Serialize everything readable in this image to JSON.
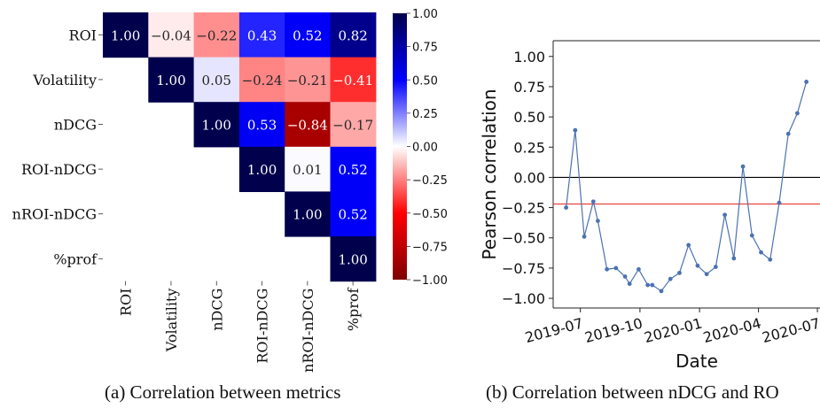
{
  "captions": {
    "left": "(a) Correlation between metrics",
    "right": "(b) Correlation between nDCG and RO"
  },
  "chart_data": [
    {
      "type": "heatmap",
      "title": "",
      "row_labels": [
        "ROI",
        "Volatility",
        "nDCG",
        "ROI-nDCG",
        "nROI-nDCG",
        "%prof"
      ],
      "col_labels": [
        "ROI",
        "Volatility",
        "nDCG",
        "ROI-nDCG",
        "nROI-nDCG",
        "%prof"
      ],
      "values": [
        [
          1.0,
          -0.04,
          -0.22,
          0.43,
          0.52,
          0.82
        ],
        [
          null,
          1.0,
          0.05,
          -0.24,
          -0.21,
          -0.41
        ],
        [
          null,
          null,
          1.0,
          0.53,
          -0.84,
          -0.17
        ],
        [
          null,
          null,
          null,
          1.0,
          0.01,
          0.52
        ],
        [
          null,
          null,
          null,
          null,
          1.0,
          0.52
        ],
        [
          null,
          null,
          null,
          null,
          null,
          1.0
        ]
      ],
      "colormap": "seismic",
      "vmin": -1.0,
      "vmax": 1.0,
      "colorbar_ticks": [
        "1.00",
        "0.75",
        "0.50",
        "0.25",
        "0.00",
        "−0.25",
        "−0.50",
        "−0.75",
        "−1.00"
      ],
      "colors": {
        "positive_max": "#00004c",
        "positive_mid": "#0000ff",
        "neutral": "#ffffff",
        "negative_mid": "#ff0000",
        "negative_max": "#7f0000"
      }
    },
    {
      "type": "line",
      "title": "",
      "xlabel": "Date",
      "ylabel": "Pearson correlation",
      "ylim": [
        -1.08,
        1.13
      ],
      "yticks": [
        "1.00",
        "0.75",
        "0.50",
        "0.25",
        "0.00",
        "−0.25",
        "−0.50",
        "−0.75",
        "−1.00"
      ],
      "xticks": [
        "2019-07",
        "2019-10",
        "2020-01",
        "2020-04",
        "2020-07"
      ],
      "reference_lines": [
        {
          "y": 0.0,
          "color": "#000000"
        },
        {
          "y": -0.22,
          "color": "#e8423e"
        }
      ],
      "series": [
        {
          "color": "#4c72b0",
          "x": [
            "2019-06-09",
            "2019-06-16",
            "2019-06-23",
            "2019-06-30",
            "2019-07-07",
            "2019-07-14",
            "2019-07-21",
            "2019-07-28",
            "2019-08-04",
            "2019-08-11",
            "2019-08-18",
            "2019-08-25",
            "2019-09-01",
            "2019-09-08",
            "2019-09-15",
            "2019-09-22",
            "2019-09-29",
            "2019-10-06",
            "2019-10-13",
            "2019-10-20",
            "2019-10-27",
            "2019-11-03",
            "2019-11-10",
            "2019-11-17",
            "2019-11-24",
            "2019-12-01",
            "2019-12-08",
            "2019-12-15",
            "2019-12-22",
            "2019-12-29",
            "2020-01-05",
            "2020-01-12",
            "2020-01-19",
            "2020-01-26",
            "2020-02-02",
            "2020-02-09",
            "2020-02-16",
            "2020-02-23",
            "2020-03-01",
            "2020-03-08",
            "2020-03-15",
            "2020-03-22",
            "2020-03-29",
            "2020-04-05",
            "2020-04-12",
            "2020-04-19",
            "2020-04-26",
            "2020-05-03",
            "2020-05-10",
            "2020-05-17",
            "2020-05-24",
            "2020-05-31",
            "2020-06-07",
            "2020-06-14",
            "2020-06-21",
            "2020-06-28"
          ],
          "y": [
            -0.25,
            null,
            0.39,
            null,
            -0.49,
            null,
            -0.2,
            -0.36,
            null,
            -0.76,
            null,
            -0.75,
            null,
            -0.82,
            -0.88,
            null,
            -0.76,
            null,
            -0.89,
            -0.89,
            null,
            -0.94,
            null,
            -0.84,
            null,
            -0.79,
            null,
            -0.56,
            null,
            -0.73,
            null,
            -0.8,
            null,
            -0.74,
            null,
            -0.31,
            null,
            -0.67,
            null,
            0.09,
            null,
            -0.48,
            null,
            -0.62,
            null,
            -0.68,
            null,
            -0.21,
            null,
            0.36,
            null,
            0.53,
            null,
            0.79,
            null,
            null
          ]
        }
      ]
    }
  ]
}
